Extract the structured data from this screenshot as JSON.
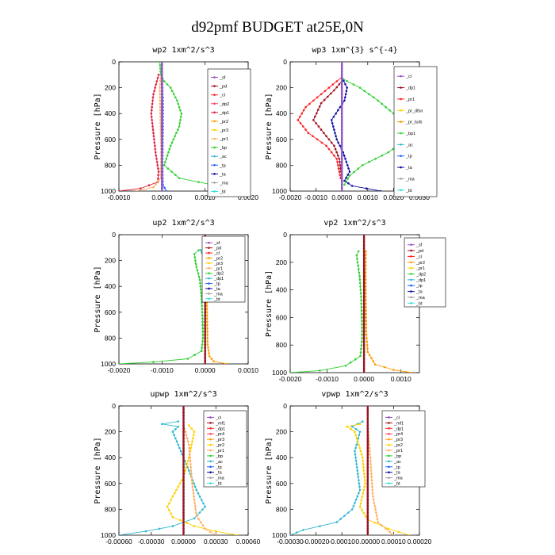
{
  "figure_title": "d92pmf  BUDGET at25E,0N",
  "chart_data": [
    {
      "type": "line",
      "title": "wp2   1xm^2/s^3",
      "ylabel": "Pressure [hPa]",
      "xlim": [
        -0.001,
        0.002
      ],
      "ylim": [
        1000,
        0
      ],
      "xticks": [
        "-0.0010",
        "0.0000",
        "0.0010",
        "0.0020"
      ],
      "yticks": [
        "0",
        "200",
        "400",
        "600",
        "800",
        "1000"
      ],
      "legend": [
        "_sf",
        "_pd",
        "_cl",
        "_dp2",
        "_dp1",
        "_pr2",
        "_pr3",
        "_pr1",
        "_bp",
        "_ac",
        "_tp",
        "_ta",
        "_ma",
        "_bt"
      ],
      "colors": [
        "#9a4fc6",
        "#a01020",
        "#ff2020",
        "#ff4060",
        "#e02040",
        "#ff9a00",
        "#ffd000",
        "#ffb060",
        "#30d030",
        "#30b8d0",
        "#2060ff",
        "#1010a0",
        "#a0a0a0",
        "#30e0e0"
      ],
      "series": [
        {
          "name": "_bp",
          "color": "#30d030",
          "x": [
            -5e-05,
            -3e-05,
            5e-05,
            0.0002,
            0.00035,
            0.00045,
            0.0004,
            0.0002,
            5e-05,
            0.0004,
            0.0013,
            0.002
          ],
          "y": [
            0,
            100,
            150,
            200,
            300,
            400,
            500,
            650,
            800,
            900,
            960,
            1000
          ]
        },
        {
          "name": "_dp1",
          "color": "#e02040",
          "x": [
            -8e-05,
            -0.00012,
            -0.0002,
            -0.00025,
            -0.0002,
            -0.00015,
            -8e-05,
            -0.0001,
            -0.0005,
            -0.001
          ],
          "y": [
            100,
            150,
            250,
            400,
            550,
            700,
            850,
            930,
            980,
            1000
          ]
        },
        {
          "name": "_pr1",
          "color": "#ffb060",
          "x": [
            -3e-05,
            -5e-05,
            -4e-05,
            -2e-05,
            -3e-05,
            -0.0002,
            -0.0006
          ],
          "y": [
            120,
            200,
            400,
            700,
            900,
            970,
            1000
          ]
        },
        {
          "name": "_tp",
          "color": "#2060ff",
          "x": [
            0.0,
            2e-05,
            2e-05,
            1e-05,
            2e-05,
            0.0001
          ],
          "y": [
            100,
            300,
            500,
            800,
            950,
            1000
          ]
        },
        {
          "name": "_bt",
          "color": "#30e0e0",
          "x": [
            0,
            0,
            0,
            0,
            0,
            0
          ],
          "y": [
            0,
            200,
            400,
            600,
            800,
            1000
          ]
        },
        {
          "name": "_sf",
          "color": "#9a4fc6",
          "x": [
            0,
            0,
            0,
            0,
            0,
            0
          ],
          "y": [
            0,
            200,
            400,
            600,
            800,
            1000
          ]
        }
      ]
    },
    {
      "type": "line",
      "title": "wp3   1xm^{3} s^{-4}",
      "ylabel": "Pressure [hPa]",
      "xlim": [
        -0.002,
        0.003
      ],
      "ylim": [
        1000,
        0
      ],
      "xticks": [
        "-0.0020",
        "-0.0010",
        "0.0000",
        "0.0010",
        "0.0020",
        "0.0030"
      ],
      "yticks": [
        "0",
        "200",
        "400",
        "600",
        "800",
        "1000"
      ],
      "legend": [
        "_cl",
        "_dp1",
        "_pr1",
        "_pr_dfsn",
        "_pr_turb",
        "_bp1",
        "_ac",
        "_tp",
        "_ta",
        "_ma",
        "_bt"
      ],
      "colors": [
        "#9a4fc6",
        "#a01020",
        "#ff2020",
        "#ffd000",
        "#ff9a00",
        "#30d030",
        "#30b8d0",
        "#2060ff",
        "#1010a0",
        "#a0a0a0",
        "#30e0e0"
      ],
      "series": [
        {
          "name": "_bp1",
          "color": "#30d030",
          "x": [
            0,
            0.0002,
            0.0007,
            0.0014,
            0.002,
            0.0026,
            0.0025,
            0.0018,
            0.0008,
            0.0003,
            0.0001
          ],
          "y": [
            120,
            150,
            200,
            300,
            400,
            500,
            600,
            700,
            800,
            880,
            950
          ]
        },
        {
          "name": "_pr1",
          "color": "#ff2020",
          "x": [
            0,
            -0.0002,
            -0.0008,
            -0.0014,
            -0.0017,
            -0.0013,
            -0.0006,
            -0.0002,
            -5e-05
          ],
          "y": [
            120,
            150,
            250,
            350,
            450,
            550,
            650,
            750,
            900
          ]
        },
        {
          "name": "_dp1",
          "color": "#a01020",
          "x": [
            0,
            -0.0003,
            -0.0008,
            -0.0011,
            -0.0007,
            -0.0003,
            -0.0001,
            0
          ],
          "y": [
            150,
            220,
            320,
            450,
            550,
            650,
            750,
            900
          ]
        },
        {
          "name": "_ta",
          "color": "#1010a0",
          "x": [
            0,
            0.0002,
            0.0001,
            -0.0004,
            -0.0002,
            5e-05,
            0.0003,
            0.0001,
            0.0004,
            0.0015
          ],
          "y": [
            120,
            200,
            300,
            450,
            600,
            700,
            850,
            920,
            960,
            1000
          ]
        },
        {
          "name": "_bt",
          "color": "#30e0e0",
          "x": [
            0,
            0,
            0,
            0,
            0
          ],
          "y": [
            0,
            250,
            500,
            750,
            1000
          ]
        },
        {
          "name": "_cl",
          "color": "#9a4fc6",
          "x": [
            0,
            0,
            0,
            0,
            0
          ],
          "y": [
            0,
            250,
            500,
            750,
            1000
          ]
        }
      ]
    },
    {
      "type": "line",
      "title": "up2   1xm^2/s^3",
      "ylabel": "Pressure [hPa]",
      "xlim": [
        -0.002,
        0.001
      ],
      "ylim": [
        1000,
        0
      ],
      "xticks": [
        "-0.0020",
        "-0.0010",
        "0.0000",
        "0.0010"
      ],
      "yticks": [
        "0",
        "200",
        "400",
        "600",
        "800",
        "1000"
      ],
      "legend": [
        "_sf",
        "_pd",
        "_cl",
        "_pr2",
        "_pr3",
        "_pr1",
        "_dp2",
        "_dp1",
        "_tp",
        "_ta",
        "_ma",
        "_bt"
      ],
      "colors": [
        "#9a4fc6",
        "#a01020",
        "#ff2020",
        "#ff9a00",
        "#ffd000",
        "#ffb060",
        "#30d030",
        "#30b8d0",
        "#2060ff",
        "#1010a0",
        "#a0a0a0",
        "#30e0e0"
      ],
      "series": [
        {
          "name": "_dp2",
          "color": "#30d030",
          "x": [
            -0.00015,
            -0.00025,
            -0.0002,
            -0.00012,
            -8e-05,
            -6e-05,
            -5e-05,
            -8e-05,
            -0.0004,
            -0.0012,
            -0.002
          ],
          "y": [
            120,
            150,
            250,
            350,
            500,
            650,
            800,
            900,
            960,
            985,
            1000
          ]
        },
        {
          "name": "_pr2",
          "color": "#ff9a00",
          "x": [
            5e-05,
            3e-05,
            4e-05,
            5e-05,
            6e-05,
            0.0001,
            0.0002,
            0.0005
          ],
          "y": [
            120,
            300,
            500,
            700,
            850,
            940,
            980,
            1000
          ]
        },
        {
          "name": "_dp1",
          "color": "#30b8d0",
          "x": [
            -0.0001,
            -5e-05,
            -3e-05,
            -2e-05
          ],
          "y": [
            120,
            160,
            250,
            400
          ]
        },
        {
          "name": "_bt",
          "color": "#30e0e0",
          "x": [
            0,
            0,
            0,
            0,
            0
          ],
          "y": [
            0,
            250,
            500,
            750,
            1000
          ]
        },
        {
          "name": "_sf",
          "color": "#a01020",
          "x": [
            0,
            0,
            0,
            0,
            0
          ],
          "y": [
            0,
            250,
            500,
            750,
            1000
          ]
        }
      ]
    },
    {
      "type": "line",
      "title": "vp2   1xm^2/s^3",
      "ylabel": "Pressure [hPa]",
      "xlim": [
        -0.002,
        0.0015
      ],
      "ylim": [
        1000,
        0
      ],
      "xticks": [
        "-0.0020",
        "-0.0010",
        "0.0000",
        "0.0010"
      ],
      "yticks": [
        "0",
        "200",
        "400",
        "600",
        "800",
        "1000"
      ],
      "legend": [
        "_sf",
        "_pd",
        "_cl",
        "_pr2",
        "_pr1",
        "_dp2",
        "_dp1",
        "_tp",
        "_ta",
        "_ma",
        "_bt"
      ],
      "colors": [
        "#9a4fc6",
        "#a01020",
        "#ff2020",
        "#ff9a00",
        "#ffd000",
        "#30d030",
        "#30b8d0",
        "#2060ff",
        "#1010a0",
        "#a0a0a0",
        "#30e0e0"
      ],
      "series": [
        {
          "name": "_dp2",
          "color": "#30d030",
          "x": [
            -0.00015,
            -0.0002,
            -0.00012,
            -8e-05,
            -6e-05,
            -5e-05,
            -0.0001,
            -0.0005,
            -0.0012,
            -0.002
          ],
          "y": [
            120,
            150,
            300,
            450,
            600,
            750,
            880,
            950,
            985,
            1000
          ]
        },
        {
          "name": "_pr2",
          "color": "#ff9a00",
          "x": [
            5e-05,
            4e-05,
            5e-05,
            6e-05,
            0.0001,
            0.0003,
            0.0008,
            0.0013
          ],
          "y": [
            120,
            300,
            500,
            700,
            850,
            940,
            980,
            1000
          ]
        },
        {
          "name": "_bt",
          "color": "#30e0e0",
          "x": [
            0,
            0,
            0,
            0,
            0
          ],
          "y": [
            0,
            250,
            500,
            750,
            1000
          ]
        },
        {
          "name": "_sf",
          "color": "#a01020",
          "x": [
            0,
            0,
            0,
            0,
            0
          ],
          "y": [
            0,
            250,
            500,
            750,
            1000
          ]
        }
      ]
    },
    {
      "type": "line",
      "title": "upwp   1xm^2/s^3",
      "ylabel": "Pressure [hPa]",
      "xlim": [
        -0.0006,
        0.0006
      ],
      "ylim": [
        1000,
        0
      ],
      "xticks": [
        "-0.00060",
        "-0.00030",
        "0.00000",
        "0.00030",
        "0.00060"
      ],
      "yticks": [
        "0",
        "200",
        "400",
        "600",
        "800",
        "1000"
      ],
      "legend": [
        "_cl",
        "_mf1",
        "_dp1",
        "_pr4",
        "_pr3",
        "_pr2",
        "_pr1",
        "_bp",
        "_ac",
        "_tp",
        "_ta",
        "_ma",
        "_bt"
      ],
      "colors": [
        "#9a4fc6",
        "#a01020",
        "#ff2020",
        "#ff4060",
        "#ff9a00",
        "#ffd000",
        "#ffb060",
        "#30d030",
        "#30b8d0",
        "#2060ff",
        "#1010a0",
        "#a0a0a0",
        "#30e0e0"
      ],
      "series": [
        {
          "name": "_ac",
          "color": "#30b8d0",
          "x": [
            -5e-05,
            -0.0002,
            -5e-05,
            -0.0001,
            -5e-05,
            5e-05,
            0.00012,
            0.0002,
            0.0001,
            -0.0001,
            -0.00035,
            -0.0006
          ],
          "y": [
            120,
            140,
            160,
            200,
            300,
            500,
            650,
            780,
            870,
            930,
            970,
            1000
          ]
        },
        {
          "name": "_pr2",
          "color": "#ffd000",
          "x": [
            5e-05,
            0.0001,
            5e-05,
            0.0,
            -0.0001,
            -0.00015,
            -0.0001,
            0.0001,
            0.0003,
            0.0005
          ],
          "y": [
            150,
            200,
            400,
            550,
            700,
            780,
            860,
            930,
            970,
            1000
          ]
        },
        {
          "name": "_pr1",
          "color": "#ffb060",
          "x": [
            0.0,
            5e-05,
            8e-05,
            0.00012,
            0.0002,
            0.0003
          ],
          "y": [
            150,
            300,
            600,
            850,
            950,
            1000
          ]
        },
        {
          "name": "_bt",
          "color": "#30e0e0",
          "x": [
            0,
            0,
            0,
            0,
            0
          ],
          "y": [
            0,
            250,
            500,
            750,
            1000
          ]
        },
        {
          "name": "_cl",
          "color": "#a01020",
          "x": [
            0,
            0,
            0,
            0,
            0
          ],
          "y": [
            0,
            250,
            500,
            750,
            1000
          ]
        }
      ]
    },
    {
      "type": "line",
      "title": "vpwp   1xm^2/s^3",
      "ylabel": "Pressure [hPa]",
      "xlim": [
        -0.0003,
        0.0002
      ],
      "ylim": [
        1000,
        0
      ],
      "xticks": [
        "-0.00030",
        "-0.00020",
        "-0.00010",
        "0.00000",
        "0.00010",
        "0.00020"
      ],
      "yticks": [
        "0",
        "200",
        "400",
        "600",
        "800",
        "1000"
      ],
      "legend": [
        "_cl",
        "_mf1",
        "_dp1",
        "_pr4",
        "_pr3",
        "_pr2",
        "_pr1",
        "_bp",
        "_ac",
        "_tp",
        "_ta",
        "_ma",
        "_bt"
      ],
      "colors": [
        "#9a4fc6",
        "#a01020",
        "#ff2020",
        "#ff4060",
        "#ff9a00",
        "#ffd000",
        "#ffb060",
        "#30d030",
        "#30b8d0",
        "#2060ff",
        "#1010a0",
        "#a0a0a0",
        "#30e0e0"
      ],
      "series": [
        {
          "name": "_ac",
          "color": "#30b8d0",
          "x": [
            -2e-05,
            -6e-05,
            -3e-05,
            -5e-05,
            -4e-05,
            -3e-05,
            -6e-05,
            -0.00012,
            -0.00025,
            -0.0003
          ],
          "y": [
            120,
            160,
            200,
            350,
            500,
            650,
            800,
            900,
            960,
            1000
          ]
        },
        {
          "name": "_pr2",
          "color": "#ffd000",
          "x": [
            -3e-05,
            -8e-05,
            -5e-05,
            -2e-05,
            -1e-05,
            -3e-05,
            0.0,
            8e-05,
            0.00016
          ],
          "y": [
            140,
            160,
            200,
            400,
            600,
            780,
            880,
            950,
            1000
          ]
        },
        {
          "name": "_pr1",
          "color": "#ffb060",
          "x": [
            0.0,
            1e-05,
            2e-05,
            4e-05,
            0.0001
          ],
          "y": [
            150,
            400,
            700,
            900,
            1000
          ]
        },
        {
          "name": "_bt",
          "color": "#30e0e0",
          "x": [
            0,
            0,
            0,
            0,
            0
          ],
          "y": [
            0,
            250,
            500,
            750,
            1000
          ]
        },
        {
          "name": "_cl",
          "color": "#a01020",
          "x": [
            0,
            0,
            0,
            0,
            0
          ],
          "y": [
            0,
            250,
            500,
            750,
            1000
          ]
        }
      ]
    }
  ]
}
